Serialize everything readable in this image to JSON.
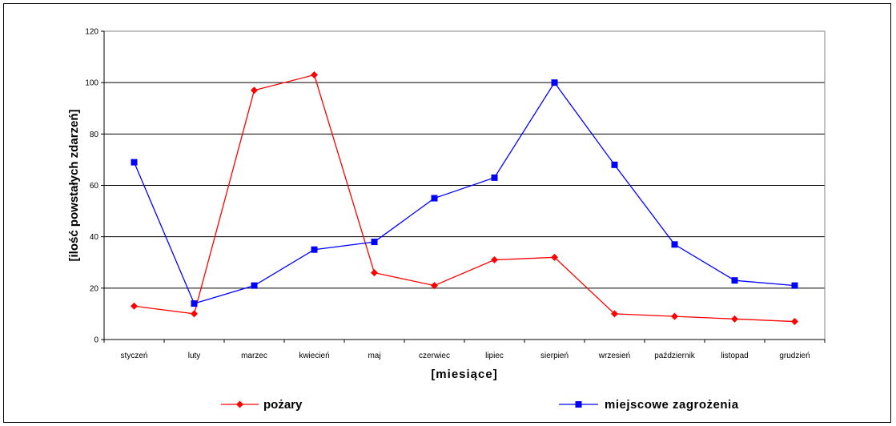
{
  "chart_data": {
    "type": "line",
    "categories": [
      "styczeń",
      "luty",
      "marzec",
      "kwiecień",
      "maj",
      "czerwiec",
      "lipiec",
      "sierpień",
      "wrzesień",
      "październik",
      "listopad",
      "grudzień"
    ],
    "series": [
      {
        "name": "pożary",
        "values": [
          13,
          10,
          97,
          103,
          26,
          21,
          31,
          32,
          10,
          9,
          8,
          7
        ],
        "color": "#ff0000",
        "marker": "diamond"
      },
      {
        "name": "miejscowe zagrożenia",
        "values": [
          69,
          14,
          21,
          35,
          38,
          55,
          63,
          100,
          68,
          37,
          23,
          21
        ],
        "color": "#0000ff",
        "marker": "square"
      }
    ],
    "xlabel": "[miesiące]",
    "ylabel": "[ilość powstałych zdarzeń]",
    "ylim": [
      0,
      120
    ],
    "yticks": [
      0,
      20,
      40,
      60,
      80,
      100,
      120
    ],
    "grid": true,
    "legend": "bottom"
  }
}
